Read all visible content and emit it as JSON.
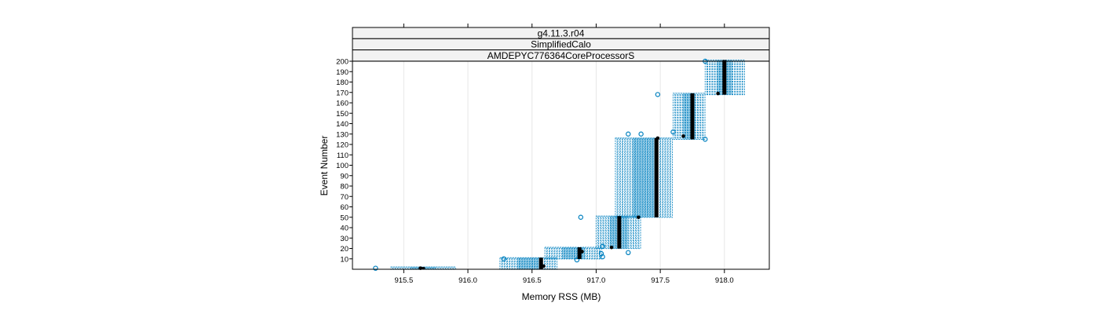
{
  "chart_data": {
    "type": "scatter",
    "strips": [
      "g4.11.3.r04",
      "SimplifiedCalo",
      "AMDEPYC776364CoreProcessorS"
    ],
    "xlabel": "Memory RSS (MB)",
    "ylabel": "Event Number",
    "xlim": [
      915.1,
      918.35
    ],
    "ylim": [
      0,
      200
    ],
    "x_ticks": [
      915.5,
      916.0,
      916.5,
      917.0,
      917.5,
      918.0
    ],
    "x_tick_labels": [
      "915.5",
      "916.0",
      "916.5",
      "917.0",
      "917.5",
      "918.0"
    ],
    "y_ticks": [
      10,
      20,
      30,
      40,
      50,
      60,
      70,
      80,
      90,
      100,
      110,
      120,
      130,
      140,
      150,
      160,
      170,
      180,
      190,
      200
    ],
    "y_tick_labels": [
      "10",
      "20",
      "30",
      "40",
      "50",
      "60",
      "70",
      "80",
      "90",
      "100",
      "110",
      "120",
      "130",
      "140",
      "150",
      "160",
      "170",
      "180",
      "190",
      "200"
    ],
    "grid": true,
    "colors": {
      "points": "#0080bf",
      "median": "#000000"
    },
    "series": [
      {
        "clusters": [
          {
            "x": [
              915.4,
              915.9
            ],
            "y": [
              1,
              1
            ],
            "outliers": [
              [
                915.28,
                1
              ]
            ]
          },
          {
            "x": [
              916.25,
              916.7
            ],
            "y": [
              1,
              10
            ],
            "outliers": [
              [
                916.28,
                10
              ]
            ]
          },
          {
            "x": [
              916.6,
              917.05
            ],
            "y": [
              11,
              20
            ],
            "outliers": [
              [
                916.85,
                9
              ],
              [
                917.04,
                15
              ],
              [
                917.05,
                12
              ]
            ]
          },
          {
            "x": [
              917.0,
              917.35
            ],
            "y": [
              21,
              50
            ],
            "outliers": [
              [
                916.88,
                50
              ],
              [
                917.05,
                22
              ],
              [
                917.25,
                16
              ]
            ]
          },
          {
            "x": [
              917.15,
              917.6
            ],
            "y": [
              51,
              125
            ],
            "outliers": [
              [
                917.48,
                168
              ],
              [
                917.25,
                130
              ],
              [
                917.35,
                130
              ]
            ]
          },
          {
            "x": [
              917.6,
              917.85
            ],
            "y": [
              126,
              168
            ],
            "outliers": [
              [
                917.85,
                125
              ],
              [
                917.6,
                132
              ]
            ]
          },
          {
            "x": [
              917.85,
              918.15
            ],
            "y": [
              169,
              200
            ],
            "outliers": [
              [
                917.85,
                200
              ]
            ]
          }
        ]
      },
      {
        "medians": [
          {
            "x": 915.65,
            "y0": 1,
            "y1": 1
          },
          {
            "x": 916.57,
            "y0": 1,
            "y1": 10
          },
          {
            "x": 916.87,
            "y0": 11,
            "y1": 20
          },
          {
            "x": 917.18,
            "y0": 21,
            "y1": 50
          },
          {
            "x": 917.47,
            "y0": 51,
            "y1": 125
          },
          {
            "x": 917.75,
            "y0": 126,
            "y1": 168
          },
          {
            "x": 918.0,
            "y0": 169,
            "y1": 200
          }
        ],
        "points": [
          [
            915.63,
            1
          ],
          [
            916.59,
            3
          ],
          [
            916.89,
            17
          ],
          [
            917.12,
            21
          ],
          [
            917.33,
            50
          ],
          [
            917.48,
            126
          ],
          [
            917.68,
            128
          ],
          [
            917.95,
            169
          ]
        ]
      }
    ]
  }
}
